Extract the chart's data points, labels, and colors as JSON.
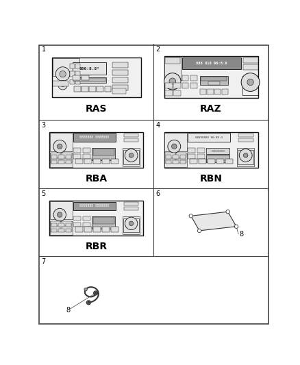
{
  "background_color": "#ffffff",
  "border_color": "#000000",
  "text_color": "#000000",
  "label_fontsize": 10,
  "number_fontsize": 7,
  "radio_fill": "#f2f2f2",
  "radio_border": "#111111",
  "col_split": 0.5,
  "row_splits": [
    0.0,
    0.27,
    0.515,
    0.755,
    1.0
  ],
  "cells": [
    {
      "id": 1,
      "row": 0,
      "col": 0,
      "label": "RAS"
    },
    {
      "id": 2,
      "row": 0,
      "col": 1,
      "label": "RAZ"
    },
    {
      "id": 3,
      "row": 1,
      "col": 0,
      "label": "RBA"
    },
    {
      "id": 4,
      "row": 1,
      "col": 1,
      "label": "RBN"
    },
    {
      "id": 5,
      "row": 2,
      "col": 0,
      "label": "RBR"
    },
    {
      "id": 6,
      "row": 2,
      "col": 1,
      "label": ""
    },
    {
      "id": 7,
      "row": 3,
      "col": 0,
      "label": ""
    },
    {
      "id": 8,
      "row": 3,
      "col": 1,
      "label": ""
    }
  ]
}
